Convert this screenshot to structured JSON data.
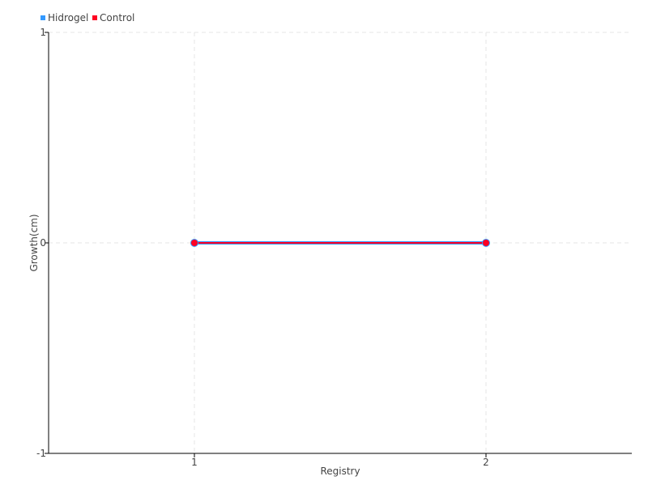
{
  "chart_data": {
    "type": "line",
    "xlabel": "Registry",
    "ylabel": "Growth(cm)",
    "categories": [
      "1",
      "2"
    ],
    "ylim": [
      -1,
      1
    ],
    "yticks": [
      "-1",
      "0",
      "1"
    ],
    "grid": true,
    "legend_position": "top-left",
    "series": [
      {
        "name": "Hidrogel",
        "values": [
          0,
          0
        ],
        "color": "#3399ff"
      },
      {
        "name": "Control",
        "values": [
          0,
          0
        ],
        "color": "#ff0022"
      }
    ]
  }
}
